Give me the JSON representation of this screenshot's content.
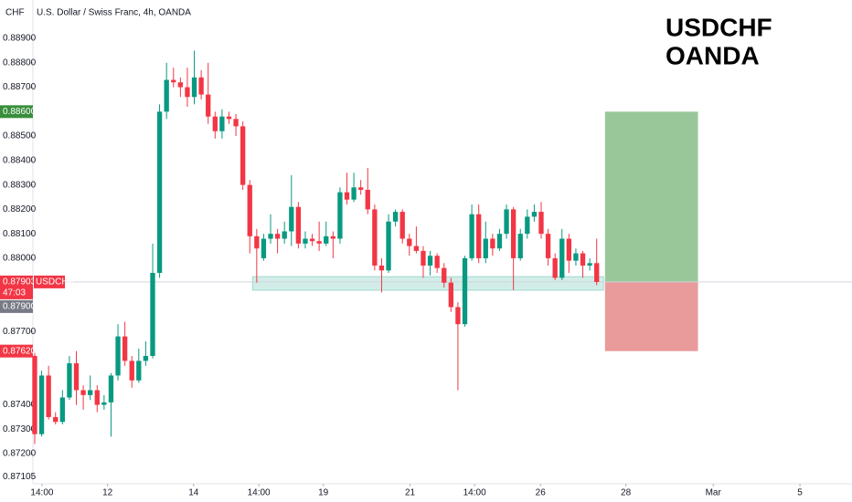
{
  "chart_data": {
    "type": "candlestick",
    "title": "U.S. Dollar / Swiss Franc, 4h, OANDA",
    "currency": "CHF",
    "watermark": [
      "USDCHF",
      "OANDA"
    ],
    "up_color": "#089981",
    "down_color": "#f23645",
    "open": [
      0.876,
      0.8728,
      0.8752,
      0.8735,
      0.8733,
      0.8743,
      0.8757,
      0.8746,
      0.8744,
      0.8746,
      0.874,
      0.8741,
      0.8752,
      0.8768,
      0.8758,
      0.875,
      0.8758,
      0.876,
      0.8794,
      0.886,
      0.8873,
      0.8872,
      0.887,
      0.8866,
      0.8874,
      0.8867,
      0.8858,
      0.8852,
      0.8858,
      0.8857,
      0.8854,
      0.883,
      0.8809,
      0.88,
      0.8808,
      0.881,
      0.8808,
      0.8811,
      0.8821,
      0.8806,
      0.8808,
      0.8807,
      0.8806,
      0.8809,
      0.8808,
      0.8827,
      0.8824,
      0.8829,
      0.8828,
      0.882,
      0.8797,
      0.8795,
      0.8815,
      0.8819,
      0.8808,
      0.8805,
      0.8803,
      0.8797,
      0.8801,
      0.8796,
      0.879,
      0.878,
      0.8773,
      0.88,
      0.8818,
      0.88,
      0.8808,
      0.8804,
      0.881,
      0.882,
      0.88,
      0.881,
      0.8817,
      0.8819,
      0.881,
      0.88,
      0.8792,
      0.8808,
      0.8799,
      0.8802,
      0.8797,
      0.8798
    ],
    "high": [
      0.8762,
      0.8754,
      0.8756,
      0.8737,
      0.8746,
      0.876,
      0.8762,
      0.8748,
      0.8752,
      0.8748,
      0.8744,
      0.8753,
      0.8773,
      0.8774,
      0.876,
      0.8763,
      0.8766,
      0.8806,
      0.8863,
      0.888,
      0.8878,
      0.8874,
      0.8878,
      0.8885,
      0.8877,
      0.888,
      0.886,
      0.8861,
      0.886,
      0.8859,
      0.8856,
      0.8832,
      0.8812,
      0.881,
      0.8818,
      0.8812,
      0.8815,
      0.8834,
      0.8823,
      0.8811,
      0.881,
      0.8815,
      0.8815,
      0.8811,
      0.8829,
      0.8835,
      0.8835,
      0.8832,
      0.8837,
      0.8822,
      0.88,
      0.8818,
      0.882,
      0.882,
      0.881,
      0.8813,
      0.8805,
      0.8803,
      0.8802,
      0.8798,
      0.8792,
      0.8782,
      0.8801,
      0.8822,
      0.8822,
      0.8815,
      0.881,
      0.8812,
      0.8822,
      0.8821,
      0.8812,
      0.882,
      0.8822,
      0.8823,
      0.8812,
      0.8802,
      0.8812,
      0.881,
      0.8804,
      0.8803,
      0.88,
      0.8808
    ],
    "low": [
      0.8724,
      0.8727,
      0.8734,
      0.8732,
      0.8732,
      0.8742,
      0.874,
      0.8738,
      0.8742,
      0.8737,
      0.8738,
      0.8727,
      0.875,
      0.8756,
      0.8747,
      0.8749,
      0.8756,
      0.8759,
      0.8792,
      0.8857,
      0.887,
      0.8866,
      0.8862,
      0.8863,
      0.8865,
      0.8855,
      0.8849,
      0.8849,
      0.8855,
      0.885,
      0.8828,
      0.8802,
      0.879,
      0.8799,
      0.8806,
      0.8802,
      0.8806,
      0.8805,
      0.8804,
      0.8804,
      0.8805,
      0.8803,
      0.8805,
      0.88,
      0.8806,
      0.8822,
      0.8823,
      0.8826,
      0.8818,
      0.8795,
      0.8786,
      0.8794,
      0.8813,
      0.8806,
      0.8801,
      0.8802,
      0.8792,
      0.8793,
      0.8794,
      0.8788,
      0.8778,
      0.8746,
      0.8772,
      0.8799,
      0.8798,
      0.8798,
      0.8801,
      0.8803,
      0.8808,
      0.8787,
      0.8799,
      0.8808,
      0.8815,
      0.8808,
      0.8797,
      0.8791,
      0.8791,
      0.8794,
      0.8797,
      0.8792,
      0.8795,
      0.8789
    ],
    "close": [
      0.8728,
      0.8752,
      0.8735,
      0.8733,
      0.8743,
      0.8757,
      0.8746,
      0.8744,
      0.8746,
      0.874,
      0.8741,
      0.8752,
      0.8768,
      0.8758,
      0.875,
      0.8758,
      0.876,
      0.8794,
      0.886,
      0.8873,
      0.8872,
      0.887,
      0.8866,
      0.8874,
      0.8867,
      0.8858,
      0.8852,
      0.8858,
      0.8857,
      0.8854,
      0.883,
      0.8809,
      0.8804,
      0.8808,
      0.881,
      0.8808,
      0.8811,
      0.8821,
      0.8806,
      0.8808,
      0.8807,
      0.8806,
      0.8809,
      0.8808,
      0.8827,
      0.8824,
      0.8829,
      0.8828,
      0.882,
      0.8797,
      0.8795,
      0.8815,
      0.8819,
      0.8808,
      0.8805,
      0.8803,
      0.8797,
      0.8801,
      0.8796,
      0.879,
      0.878,
      0.8773,
      0.88,
      0.8818,
      0.88,
      0.8808,
      0.8804,
      0.881,
      0.882,
      0.88,
      0.881,
      0.8817,
      0.8819,
      0.881,
      0.88,
      0.8792,
      0.8808,
      0.8799,
      0.8802,
      0.8797,
      0.8798,
      0.87903
    ],
    "xlim": [
      -0.26,
      117.8
    ],
    "xticks": [
      {
        "value": 1.05,
        "label": "14:00"
      },
      {
        "value": 10.5,
        "label": "12"
      },
      {
        "value": 22.9,
        "label": "14"
      },
      {
        "value": 32.3,
        "label": "14:00"
      },
      {
        "value": 41.6,
        "label": "19"
      },
      {
        "value": 54.1,
        "label": "21"
      },
      {
        "value": 63.4,
        "label": "14:00"
      },
      {
        "value": 72.9,
        "label": "26"
      },
      {
        "value": 85.2,
        "label": "28"
      },
      {
        "value": 97.8,
        "label": "Mar"
      },
      {
        "value": 110.3,
        "label": "5"
      }
    ],
    "ylim": [
      0.87077,
      0.89057
    ],
    "yticks": [
      {
        "value": 0.889,
        "label": "0.88900"
      },
      {
        "value": 0.888,
        "label": "0.88800"
      },
      {
        "value": 0.887,
        "label": "0.88700"
      },
      {
        "value": 0.885,
        "label": "0.88500"
      },
      {
        "value": 0.884,
        "label": "0.88400"
      },
      {
        "value": 0.883,
        "label": "0.88300"
      },
      {
        "value": 0.882,
        "label": "0.88200"
      },
      {
        "value": 0.881,
        "label": "0.88100"
      },
      {
        "value": 0.88,
        "label": "0.88000"
      },
      {
        "value": 0.877,
        "label": "0.87700"
      },
      {
        "value": 0.874,
        "label": "0.87400"
      },
      {
        "value": 0.873,
        "label": "0.87300"
      },
      {
        "value": 0.872,
        "label": "0.87200"
      },
      {
        "value": 0.87105,
        "label": "0.87105"
      }
    ],
    "grid": false,
    "zone": {
      "y": [
        0.87869,
        0.87925
      ],
      "x": [
        31.4,
        82.0
      ],
      "color": "#089981"
    },
    "position": {
      "entry": 0.87903,
      "target": 0.886,
      "stop": 0.8762,
      "x": [
        82.2,
        95.6
      ],
      "profit_color": "#9ac79a",
      "loss_color": "#e99a9a"
    },
    "price_labels": [
      {
        "value": 0.886,
        "label": "0.88600",
        "color": "#388e3c"
      },
      {
        "value": 0.87903,
        "label": "0.87903",
        "symbol": "USDCHF",
        "countdown": "47:03",
        "color": "#f23645"
      },
      {
        "value": 0.879,
        "label": "0.87900",
        "color": "#787b86"
      },
      {
        "value": 0.8762,
        "label": "0.87620",
        "color": "#f23645"
      }
    ]
  }
}
